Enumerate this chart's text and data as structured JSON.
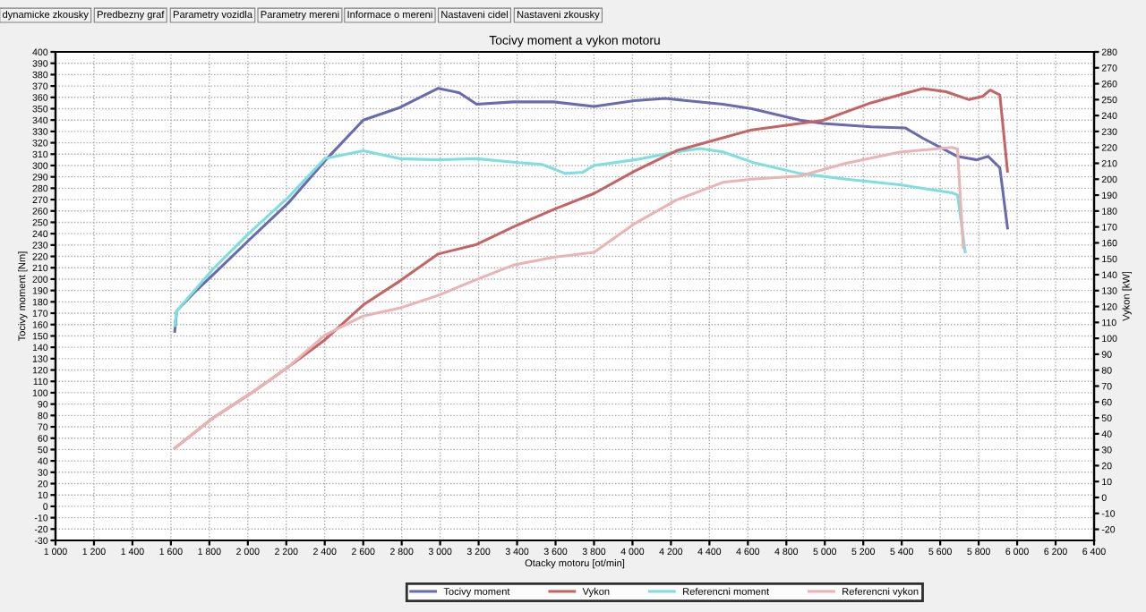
{
  "chart_data": {
    "type": "line",
    "title": "Tocivy moment a vykon motoru",
    "xlabel": "Otacky motoru [ot/min]",
    "ylabel": "Tocivy moment [Nm]",
    "y2label": "Vykon [kW]",
    "annotations": [
      "dynamicke zkousky",
      "Predbezny graf",
      "Parametry vozidla",
      "Parametry mereni",
      "Informace o mereni",
      "Nastaveni cidel",
      "Nastaveni zkousky"
    ],
    "series": [
      {
        "name": "Tocivy moment",
        "color": "#6a6aae",
        "x": [
          1620,
          1630,
          1720,
          1820,
          2010,
          2210,
          2400,
          2600,
          2790,
          2990,
          3100,
          3190,
          3380,
          3590,
          3800,
          4010,
          4170,
          4470,
          4620,
          4870,
          4990,
          5240,
          5420,
          5510,
          5690,
          5790,
          5850,
          5910,
          5950
        ],
        "values": [
          154,
          172,
          188,
          204,
          235,
          267,
          304,
          340,
          351,
          368,
          364,
          354,
          356,
          356,
          352,
          357,
          359,
          354,
          350,
          340,
          337,
          334,
          333,
          324,
          308,
          305,
          308,
          298,
          245
        ]
      },
      {
        "name": "Vykon",
        "color": "#c46464",
        "axis": "y2",
        "x": [
          1620,
          1820,
          2010,
          2210,
          2400,
          2600,
          2790,
          2990,
          3190,
          3380,
          3590,
          3800,
          4010,
          4230,
          4470,
          4620,
          4870,
          4990,
          5240,
          5510,
          5630,
          5750,
          5820,
          5860,
          5910,
          5950
        ],
        "values": [
          31,
          50,
          65,
          82,
          99,
          121,
          136,
          153,
          159,
          170,
          181,
          191,
          205,
          218,
          226,
          231,
          235,
          237,
          248,
          257,
          255,
          250,
          252,
          256,
          253,
          205
        ]
      },
      {
        "name": "Referencni moment",
        "color": "#7fdede",
        "x": [
          1620,
          1630,
          1820,
          2010,
          2210,
          2400,
          2600,
          2790,
          2990,
          3190,
          3380,
          3530,
          3650,
          3740,
          3800,
          4010,
          4230,
          4350,
          4470,
          4620,
          4870,
          5110,
          5390,
          5660,
          5690,
          5730
        ],
        "values": [
          159,
          172,
          209,
          241,
          272,
          306,
          313,
          306,
          305,
          306,
          303,
          301,
          293,
          294,
          300,
          305,
          312,
          315,
          312,
          303,
          293,
          288,
          283,
          276,
          274,
          224
        ]
      },
      {
        "name": "Referencni vykon",
        "color": "#e8b4b4",
        "axis": "y2",
        "x": [
          1620,
          1820,
          2010,
          2210,
          2400,
          2600,
          2790,
          2990,
          3190,
          3380,
          3590,
          3800,
          4010,
          4230,
          4470,
          4620,
          4870,
          5110,
          5390,
          5660,
          5690,
          5720
        ],
        "values": [
          31,
          50,
          65,
          82,
          102,
          114,
          119,
          127,
          137,
          146,
          151,
          154,
          172,
          187,
          198,
          200,
          202,
          210,
          217,
          220,
          219,
          157
        ]
      }
    ],
    "xlim": [
      1000,
      6400
    ],
    "xticks": [
      {
        "value": 1000,
        "label": "1 000"
      },
      {
        "value": 1200,
        "label": "1 200"
      },
      {
        "value": 1400,
        "label": "1 400"
      },
      {
        "value": 1600,
        "label": "1 600"
      },
      {
        "value": 1800,
        "label": "1 800"
      },
      {
        "value": 2000,
        "label": "2 000"
      },
      {
        "value": 2200,
        "label": "2 200"
      },
      {
        "value": 2400,
        "label": "2 400"
      },
      {
        "value": 2600,
        "label": "2 600"
      },
      {
        "value": 2800,
        "label": "2 800"
      },
      {
        "value": 3000,
        "label": "3 000"
      },
      {
        "value": 3200,
        "label": "3 200"
      },
      {
        "value": 3400,
        "label": "3 400"
      },
      {
        "value": 3600,
        "label": "3 600"
      },
      {
        "value": 3800,
        "label": "3 800"
      },
      {
        "value": 4000,
        "label": "4 000"
      },
      {
        "value": 4200,
        "label": "4 200"
      },
      {
        "value": 4400,
        "label": "4 400"
      },
      {
        "value": 4600,
        "label": "4 600"
      },
      {
        "value": 4800,
        "label": "4 800"
      },
      {
        "value": 5000,
        "label": "5 000"
      },
      {
        "value": 5200,
        "label": "5 200"
      },
      {
        "value": 5400,
        "label": "5 400"
      },
      {
        "value": 5600,
        "label": "5 600"
      },
      {
        "value": 5800,
        "label": "5 800"
      },
      {
        "value": 6000,
        "label": "6 000"
      },
      {
        "value": 6200,
        "label": "6 200"
      },
      {
        "value": 6400,
        "label": "6 400"
      }
    ],
    "ylim": [
      -30,
      400
    ],
    "yticks": [
      -30,
      -20,
      -10,
      0,
      10,
      20,
      30,
      40,
      50,
      60,
      70,
      80,
      90,
      100,
      110,
      120,
      130,
      140,
      150,
      160,
      170,
      180,
      190,
      200,
      210,
      220,
      230,
      240,
      250,
      260,
      270,
      280,
      290,
      300,
      310,
      320,
      330,
      340,
      350,
      360,
      370,
      380,
      390,
      400
    ],
    "y2lim": [
      -27,
      280
    ],
    "y2ticks": [
      -20,
      -10,
      0,
      10,
      20,
      30,
      40,
      50,
      60,
      70,
      80,
      90,
      100,
      110,
      120,
      130,
      140,
      150,
      160,
      170,
      180,
      190,
      200,
      210,
      220,
      230,
      240,
      250,
      260,
      270,
      280
    ],
    "grid": true,
    "line_style": "solid",
    "legend": "bottom"
  }
}
